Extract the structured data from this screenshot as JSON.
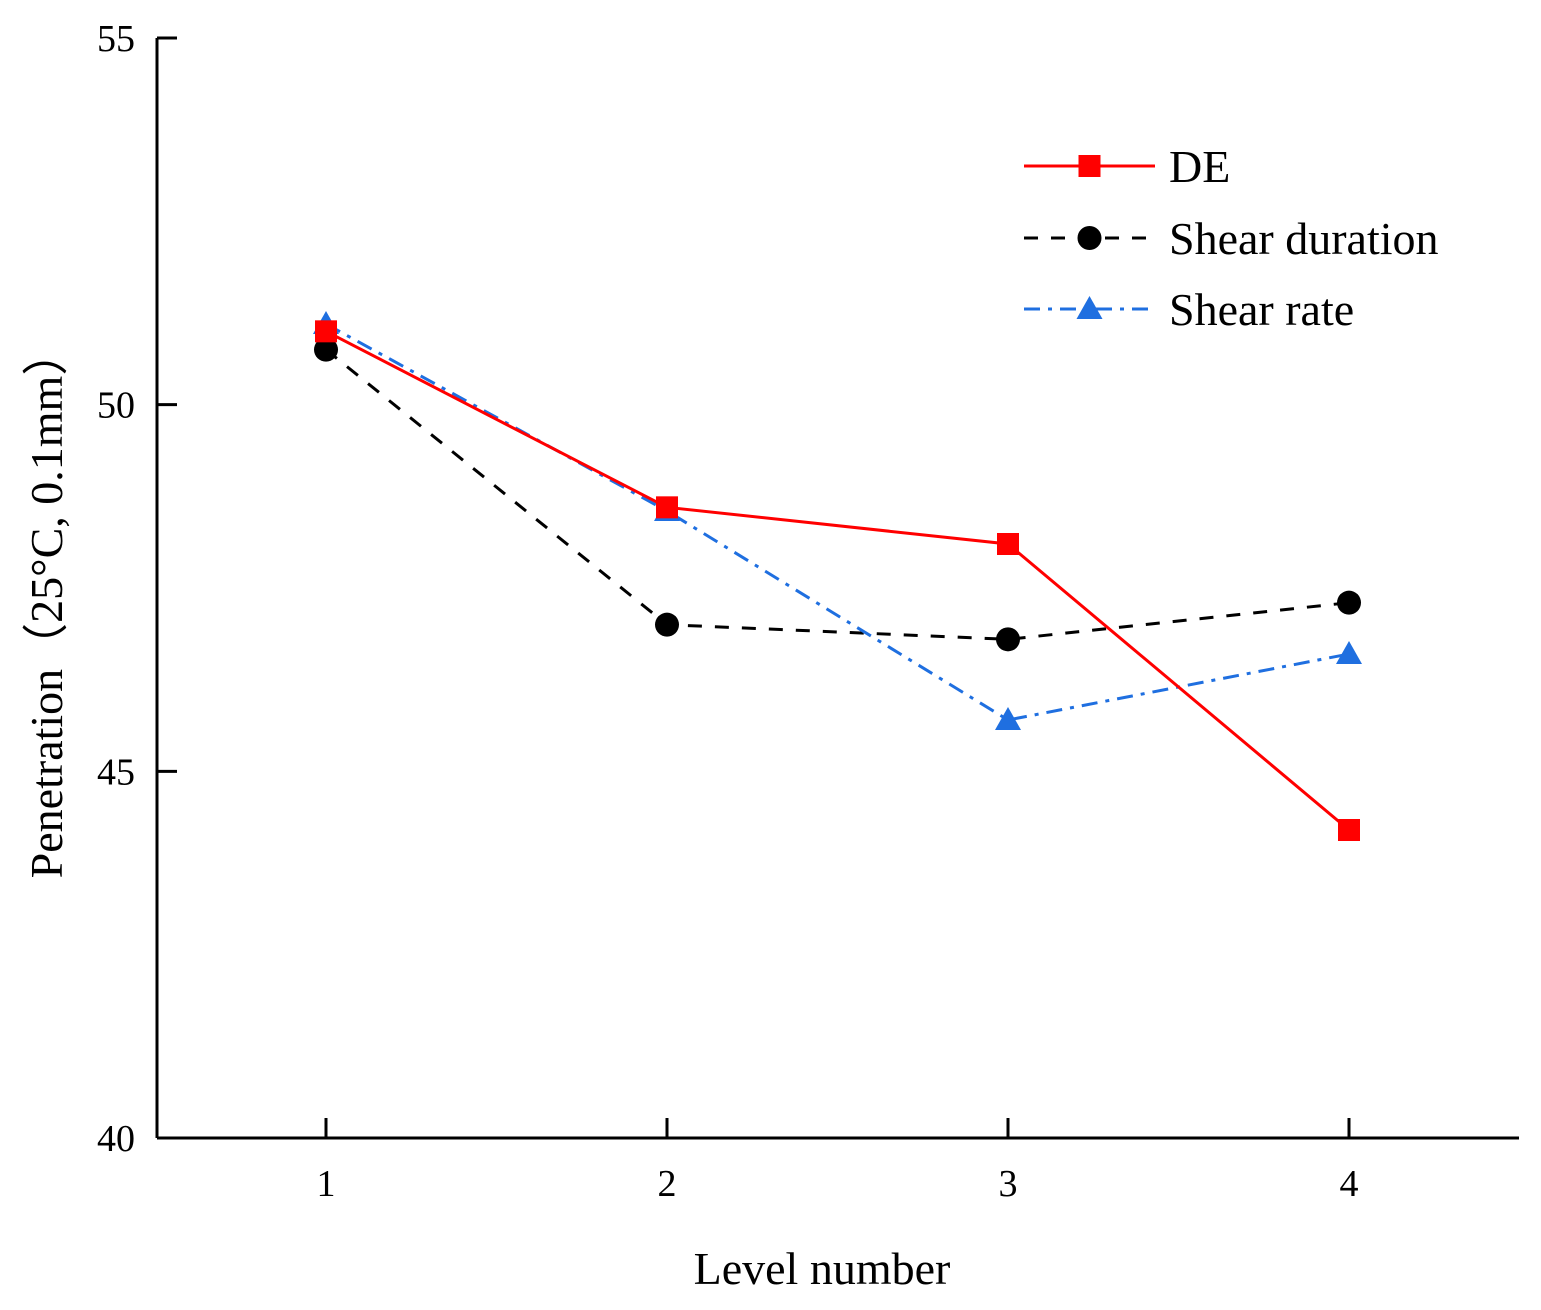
{
  "chart_data": {
    "type": "line",
    "title": "",
    "xlabel": "Level number",
    "ylabel": "Penetration（25°C, 0.1mm）",
    "categories": [
      "1",
      "2",
      "3",
      "4"
    ],
    "ylim": [
      40,
      55
    ],
    "yticks": [
      40,
      45,
      50,
      55
    ],
    "grid": false,
    "legend_position": "top-right",
    "series": [
      {
        "name": "DE",
        "marker": "square",
        "dash": "solid",
        "color": "#ff0000",
        "values": [
          51.0,
          48.6,
          48.1,
          44.2
        ]
      },
      {
        "name": "Shear duration",
        "marker": "circle",
        "dash": "dashed",
        "color": "#000000",
        "values": [
          50.75,
          47.0,
          46.8,
          47.3
        ]
      },
      {
        "name": "Shear rate",
        "marker": "triangle",
        "dash": "dashdot",
        "color": "#1f6fe0",
        "values": [
          51.1,
          48.55,
          45.7,
          46.6
        ]
      }
    ]
  }
}
